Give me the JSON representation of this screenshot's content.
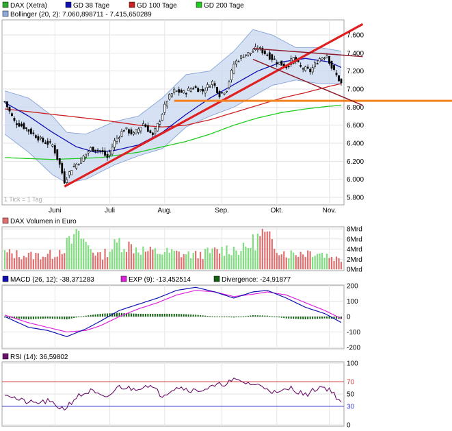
{
  "colors": {
    "candle_up": "#ffffff",
    "candle_down": "#000000",
    "gd38": "#1010b0",
    "gd100": "#cc2020",
    "gd200": "#20cc20",
    "bollinger_fill": "#c8d8f0",
    "bollinger_line": "#8fa9d8",
    "trendline": "#e02020",
    "support": "#f58220",
    "channel": "#8b1a2a",
    "volume_up": "#80dd80",
    "volume_down": "#e07070",
    "macd": "#1010b0",
    "exp": "#dd22dd",
    "divergence": "#106010",
    "rsi": "#6a0f6a",
    "rsi_70": "#d04040",
    "rsi_30": "#4040d0"
  },
  "legend_price": [
    {
      "label": "DAX (Xetra)",
      "color": "#30aa30"
    },
    {
      "label": "GD 38 Tage",
      "color": "#1010b0"
    },
    {
      "label": "GD 100 Tage",
      "color": "#cc2020"
    },
    {
      "label": "GD 200 Tage",
      "color": "#20cc20"
    }
  ],
  "legend_bollinger": {
    "label": "Bollinger (20, 2): 7.060,898711 - 7.415,650289",
    "color": "#8fa9d8"
  },
  "tick_note": "1 Tick = 1 Tag",
  "months": [
    "Juni",
    "Juli",
    "Aug.",
    "Sep.",
    "Okt.",
    "Nov."
  ],
  "legend_volume": {
    "label": "DAX Volumen in Euro",
    "color": "#e07070"
  },
  "legend_macd": [
    {
      "label": "MACD (26, 12): -38,371283",
      "color": "#1010b0"
    },
    {
      "label": "EXP (9): -13,452514",
      "color": "#dd22dd"
    },
    {
      "label": "Divergence: -24,91877",
      "color": "#106010"
    }
  ],
  "legend_rsi": {
    "label": "RSI (14): 36,59802",
    "color": "#6a0f6a"
  },
  "chart_data": [
    {
      "type": "candlestick",
      "ylim": [
        5800,
        7750
      ],
      "yticks": [
        "5.800",
        "6.000",
        "6.200",
        "6.400",
        "6.600",
        "6.800",
        "7.000",
        "7.200",
        "7.400",
        "7.600"
      ],
      "close_anchors": [
        [
          0,
          6860
        ],
        [
          4,
          6640
        ],
        [
          8,
          6580
        ],
        [
          12,
          6500
        ],
        [
          16,
          6420
        ],
        [
          20,
          6380
        ],
        [
          23,
          6160
        ],
        [
          25,
          5980
        ],
        [
          28,
          6120
        ],
        [
          32,
          6220
        ],
        [
          36,
          6340
        ],
        [
          40,
          6320
        ],
        [
          43,
          6240
        ],
        [
          46,
          6420
        ],
        [
          50,
          6560
        ],
        [
          54,
          6500
        ],
        [
          58,
          6620
        ],
        [
          62,
          6480
        ],
        [
          65,
          6660
        ],
        [
          68,
          6880
        ],
        [
          71,
          6980
        ],
        [
          75,
          6960
        ],
        [
          79,
          7020
        ],
        [
          83,
          6980
        ],
        [
          87,
          7080
        ],
        [
          90,
          6940
        ],
        [
          93,
          7000
        ],
        [
          96,
          7280
        ],
        [
          100,
          7380
        ],
        [
          103,
          7400
        ],
        [
          106,
          7460
        ],
        [
          110,
          7380
        ],
        [
          114,
          7300
        ],
        [
          118,
          7250
        ],
        [
          121,
          7340
        ],
        [
          124,
          7240
        ],
        [
          128,
          7200
        ],
        [
          132,
          7340
        ],
        [
          135,
          7380
        ],
        [
          137,
          7240
        ],
        [
          139,
          7150
        ],
        [
          141,
          7060
        ]
      ],
      "gd38_anchors": [
        [
          0,
          6850
        ],
        [
          10,
          6700
        ],
        [
          20,
          6520
        ],
        [
          30,
          6360
        ],
        [
          38,
          6300
        ],
        [
          46,
          6320
        ],
        [
          56,
          6380
        ],
        [
          66,
          6520
        ],
        [
          76,
          6720
        ],
        [
          86,
          6900
        ],
        [
          96,
          7050
        ],
        [
          106,
          7200
        ],
        [
          116,
          7300
        ],
        [
          126,
          7340
        ],
        [
          136,
          7300
        ],
        [
          141,
          7240
        ]
      ],
      "gd100_anchors": [
        [
          0,
          6780
        ],
        [
          20,
          6720
        ],
        [
          40,
          6660
        ],
        [
          56,
          6600
        ],
        [
          66,
          6580
        ],
        [
          76,
          6600
        ],
        [
          86,
          6660
        ],
        [
          96,
          6740
        ],
        [
          106,
          6820
        ],
        [
          116,
          6900
        ],
        [
          126,
          6960
        ],
        [
          136,
          7030
        ],
        [
          141,
          7060
        ]
      ],
      "gd200_anchors": [
        [
          0,
          6240
        ],
        [
          20,
          6220
        ],
        [
          40,
          6240
        ],
        [
          56,
          6300
        ],
        [
          66,
          6360
        ],
        [
          76,
          6420
        ],
        [
          86,
          6500
        ],
        [
          96,
          6600
        ],
        [
          106,
          6680
        ],
        [
          116,
          6740
        ],
        [
          126,
          6780
        ],
        [
          136,
          6810
        ],
        [
          141,
          6820
        ]
      ],
      "bollinger_upper_anchors": [
        [
          0,
          6980
        ],
        [
          10,
          6900
        ],
        [
          20,
          6700
        ],
        [
          26,
          6520
        ],
        [
          34,
          6500
        ],
        [
          46,
          6640
        ],
        [
          56,
          6700
        ],
        [
          66,
          6900
        ],
        [
          76,
          7160
        ],
        [
          86,
          7200
        ],
        [
          96,
          7420
        ],
        [
          104,
          7660
        ],
        [
          112,
          7600
        ],
        [
          122,
          7460
        ],
        [
          132,
          7460
        ],
        [
          141,
          7420
        ]
      ],
      "bollinger_lower_anchors": [
        [
          0,
          6500
        ],
        [
          10,
          6300
        ],
        [
          20,
          6050
        ],
        [
          26,
          5960
        ],
        [
          34,
          6000
        ],
        [
          46,
          6160
        ],
        [
          56,
          6260
        ],
        [
          66,
          6340
        ],
        [
          76,
          6580
        ],
        [
          86,
          6700
        ],
        [
          96,
          6800
        ],
        [
          104,
          6920
        ],
        [
          112,
          7040
        ],
        [
          122,
          7100
        ],
        [
          132,
          7060
        ],
        [
          141,
          7060
        ]
      ],
      "trendline": {
        "from": [
          25,
          5920
        ],
        "to": [
          150,
          7720
        ]
      },
      "support_line": {
        "value": 6870,
        "from_index": 71
      },
      "channel_upper": {
        "from": [
          104,
          7450
        ],
        "to": [
          150,
          7360
        ]
      },
      "channel_lower": {
        "from": [
          104,
          7330
        ],
        "to": [
          150,
          6820
        ]
      }
    },
    {
      "type": "bar",
      "title": "DAX Volumen in Euro",
      "ylim": [
        0,
        8
      ],
      "yticks": [
        "0Mrd",
        "2Mrd",
        "4Mrd",
        "6Mrd",
        "8Mrd"
      ],
      "value_anchors": [
        [
          0,
          3.8
        ],
        [
          10,
          3.2
        ],
        [
          20,
          3.4
        ],
        [
          31,
          7.6
        ],
        [
          40,
          3.0
        ],
        [
          48,
          6.2
        ],
        [
          60,
          4.1
        ],
        [
          69,
          3.9
        ],
        [
          80,
          3.3
        ],
        [
          94,
          4.8
        ],
        [
          100,
          4.6
        ],
        [
          108,
          8.0
        ],
        [
          118,
          3.6
        ],
        [
          130,
          4.2
        ],
        [
          141,
          2.2
        ]
      ]
    },
    {
      "type": "line",
      "ylim": [
        -200,
        200
      ],
      "yticks": [
        "-200",
        "-100",
        "0",
        "100",
        "200"
      ],
      "macd_anchors": [
        [
          0,
          0
        ],
        [
          10,
          -70
        ],
        [
          18,
          -90
        ],
        [
          26,
          -130
        ],
        [
          34,
          -80
        ],
        [
          40,
          -30
        ],
        [
          48,
          40
        ],
        [
          56,
          80
        ],
        [
          64,
          120
        ],
        [
          72,
          170
        ],
        [
          80,
          190
        ],
        [
          88,
          160
        ],
        [
          96,
          120
        ],
        [
          104,
          160
        ],
        [
          110,
          170
        ],
        [
          118,
          120
        ],
        [
          126,
          60
        ],
        [
          134,
          20
        ],
        [
          141,
          -38
        ]
      ],
      "exp_anchors": [
        [
          0,
          10
        ],
        [
          10,
          -40
        ],
        [
          18,
          -70
        ],
        [
          26,
          -100
        ],
        [
          34,
          -90
        ],
        [
          40,
          -60
        ],
        [
          48,
          0
        ],
        [
          56,
          50
        ],
        [
          64,
          90
        ],
        [
          72,
          140
        ],
        [
          80,
          170
        ],
        [
          88,
          160
        ],
        [
          96,
          130
        ],
        [
          104,
          145
        ],
        [
          110,
          160
        ],
        [
          118,
          140
        ],
        [
          126,
          90
        ],
        [
          134,
          40
        ],
        [
          141,
          -13
        ]
      ]
    },
    {
      "type": "line",
      "ylim": [
        0,
        100
      ],
      "yticks": [
        "0",
        "30",
        "50",
        "70",
        "100"
      ],
      "levels": [
        70,
        30
      ],
      "rsi_anchors": [
        [
          0,
          52
        ],
        [
          6,
          40
        ],
        [
          12,
          35
        ],
        [
          18,
          38
        ],
        [
          22,
          30
        ],
        [
          25,
          26
        ],
        [
          30,
          45
        ],
        [
          36,
          55
        ],
        [
          42,
          42
        ],
        [
          48,
          62
        ],
        [
          54,
          58
        ],
        [
          60,
          65
        ],
        [
          66,
          48
        ],
        [
          72,
          62
        ],
        [
          80,
          55
        ],
        [
          88,
          62
        ],
        [
          96,
          72
        ],
        [
          104,
          66
        ],
        [
          110,
          60
        ],
        [
          114,
          50
        ],
        [
          120,
          60
        ],
        [
          126,
          48
        ],
        [
          132,
          62
        ],
        [
          136,
          58
        ],
        [
          141,
          37
        ]
      ]
    }
  ]
}
